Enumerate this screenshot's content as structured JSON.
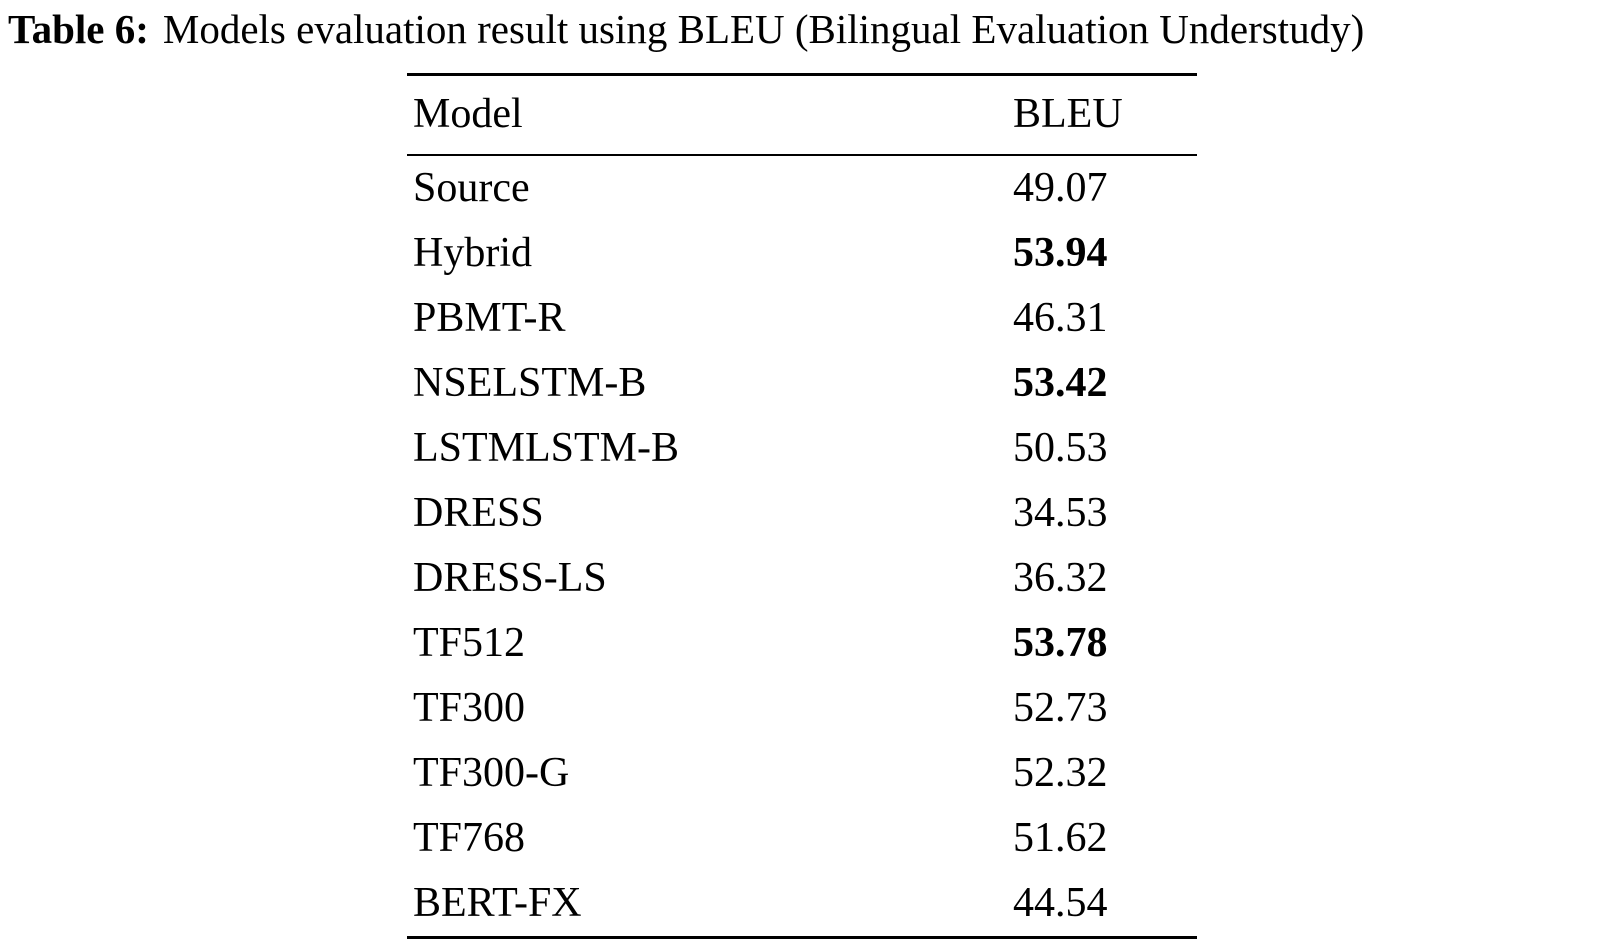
{
  "caption": {
    "label": "Table 6:",
    "text": "Models evaluation result using BLEU (Bilingual Evaluation Understudy)"
  },
  "table": {
    "headers": [
      "Model",
      "BLEU"
    ],
    "rows": [
      {
        "model": "Source",
        "bleu": "49.07",
        "bold": false
      },
      {
        "model": "Hybrid",
        "bleu": "53.94",
        "bold": true
      },
      {
        "model": "PBMT-R",
        "bleu": "46.31",
        "bold": false
      },
      {
        "model": "NSELSTM-B",
        "bleu": "53.42",
        "bold": true
      },
      {
        "model": "LSTMLSTM-B",
        "bleu": "50.53",
        "bold": false
      },
      {
        "model": "DRESS",
        "bleu": "34.53",
        "bold": false
      },
      {
        "model": "DRESS-LS",
        "bleu": "36.32",
        "bold": false
      },
      {
        "model": "TF512",
        "bleu": "53.78",
        "bold": true
      },
      {
        "model": "TF300",
        "bleu": "52.73",
        "bold": false
      },
      {
        "model": "TF300-G",
        "bleu": "52.32",
        "bold": false
      },
      {
        "model": "TF768",
        "bleu": "51.62",
        "bold": false
      },
      {
        "model": "BERT-FX",
        "bleu": "44.54",
        "bold": false
      }
    ]
  },
  "chart_data": {
    "type": "table",
    "title": "Table 6: Models evaluation result using BLEU (Bilingual Evaluation Understudy)",
    "columns": [
      "Model",
      "BLEU"
    ],
    "categories": [
      "Source",
      "Hybrid",
      "PBMT-R",
      "NSELSTM-B",
      "LSTMLSTM-B",
      "DRESS",
      "DRESS-LS",
      "TF512",
      "TF300",
      "TF300-G",
      "TF768",
      "BERT-FX"
    ],
    "values": [
      49.07,
      53.94,
      46.31,
      53.42,
      50.53,
      34.53,
      36.32,
      53.78,
      52.73,
      52.32,
      51.62,
      44.54
    ],
    "bold_values": [
      53.94,
      53.42,
      53.78
    ]
  }
}
